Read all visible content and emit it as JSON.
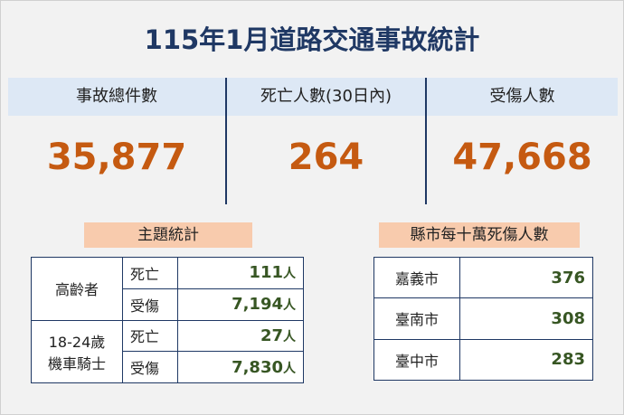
{
  "title": "115年1月道路交通事故統計",
  "summary": [
    {
      "label": "事故總件數",
      "value": "35,877"
    },
    {
      "label": "死亡人數(30日內)",
      "value": "264"
    },
    {
      "label": "受傷人數",
      "value": "47,668"
    }
  ],
  "topic_stats": {
    "title": "主題統計",
    "groups": [
      {
        "name": [
          "高齡者"
        ],
        "rows": [
          {
            "type": "死亡",
            "value": "111",
            "unit": "人"
          },
          {
            "type": "受傷",
            "value": "7,194",
            "unit": "人"
          }
        ]
      },
      {
        "name": [
          "18-24歲",
          "機車騎士"
        ],
        "rows": [
          {
            "type": "死亡",
            "value": "27",
            "unit": "人"
          },
          {
            "type": "受傷",
            "value": "7,830",
            "unit": "人"
          }
        ]
      }
    ]
  },
  "county_rates": {
    "title": "縣市每十萬死傷人數",
    "rows": [
      {
        "county": "嘉義市",
        "value": "376"
      },
      {
        "county": "臺南市",
        "value": "308"
      },
      {
        "county": "臺中市",
        "value": "283"
      }
    ]
  }
}
